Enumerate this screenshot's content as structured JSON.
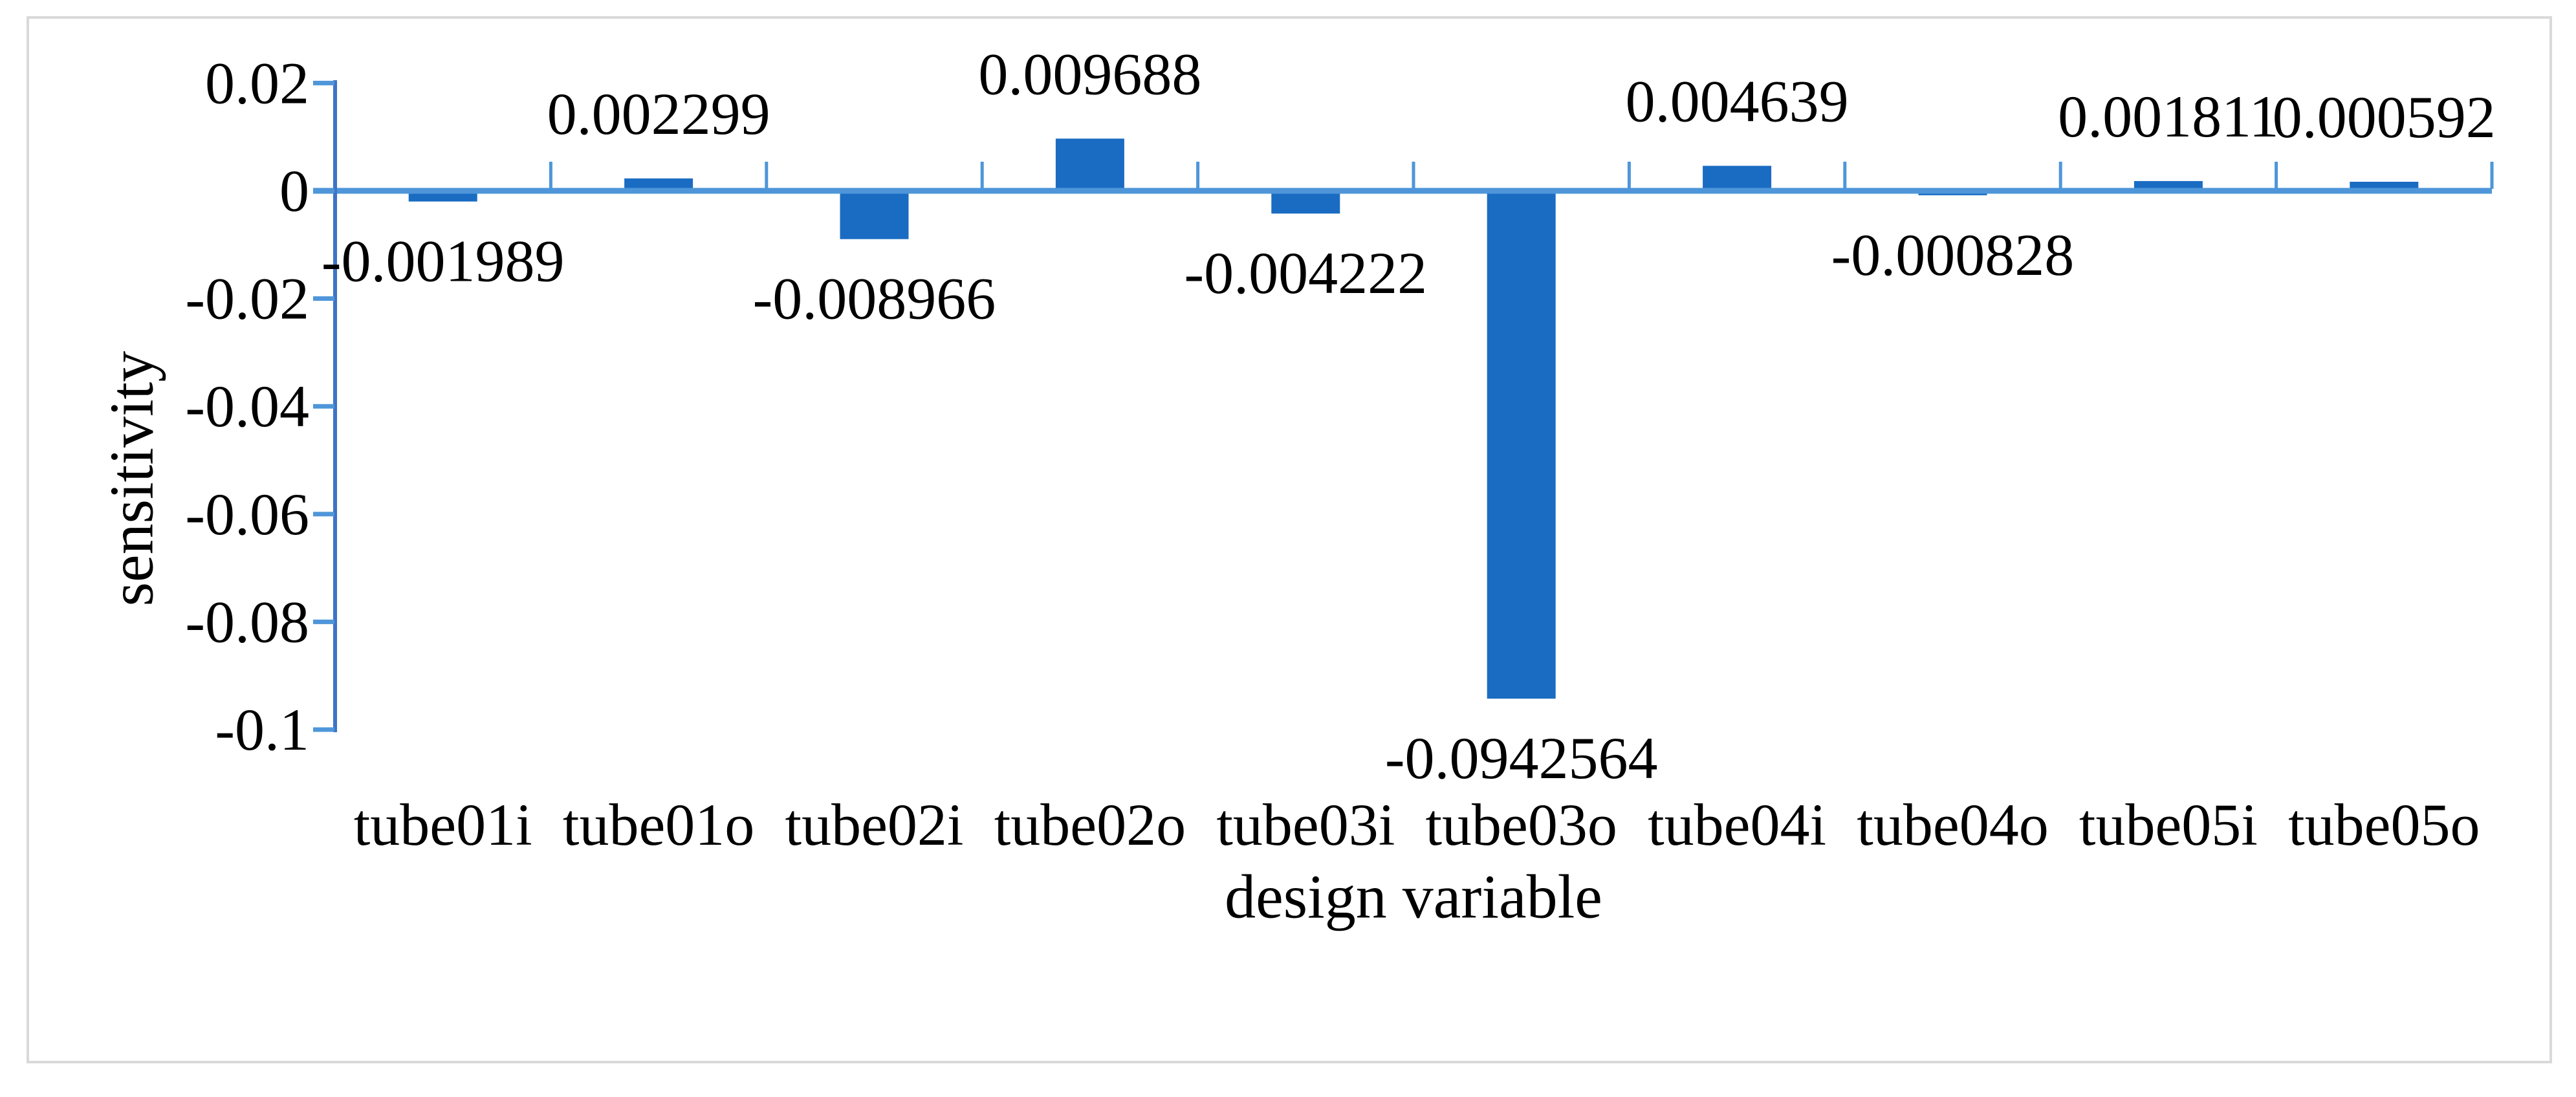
{
  "chart_data": {
    "type": "bar",
    "title": "",
    "xlabel": "design variable",
    "ylabel": "sensitivity",
    "categories": [
      "tube01i",
      "tube01o",
      "tube02i",
      "tube02o",
      "tube03i",
      "tube03o",
      "tube04i",
      "tube04o",
      "tube05i",
      "tube05o"
    ],
    "values": [
      -0.001989,
      0.002299,
      -0.008966,
      0.009688,
      -0.004222,
      -0.0942564,
      0.004639,
      -0.000828,
      0.001811,
      0.000592
    ],
    "data_labels": [
      "-0.001989",
      "0.002299",
      "-0.008966",
      "0.009688",
      "-0.004222",
      "-0.0942564",
      "0.004639",
      "-0.000828",
      "0.001811",
      "0.000592"
    ],
    "y_ticks": [
      0.02,
      0,
      -0.02,
      -0.04,
      -0.06,
      -0.08,
      -0.1
    ],
    "y_tick_labels": [
      "0.02",
      "0",
      "-0.02",
      "-0.04",
      "-0.06",
      "-0.08",
      "-0.1"
    ],
    "ylim": [
      -0.1,
      0.02
    ],
    "grid": false,
    "legend": "none",
    "series_count": 1
  },
  "colors": {
    "bar": "#1A6CC2",
    "value_axis_line": "#3E74C6",
    "category_axis_line": "#4E96D9",
    "tick": "#4E96D9",
    "text": "#000000",
    "frame": "#D9D9D9",
    "background": "#FFFFFF"
  }
}
